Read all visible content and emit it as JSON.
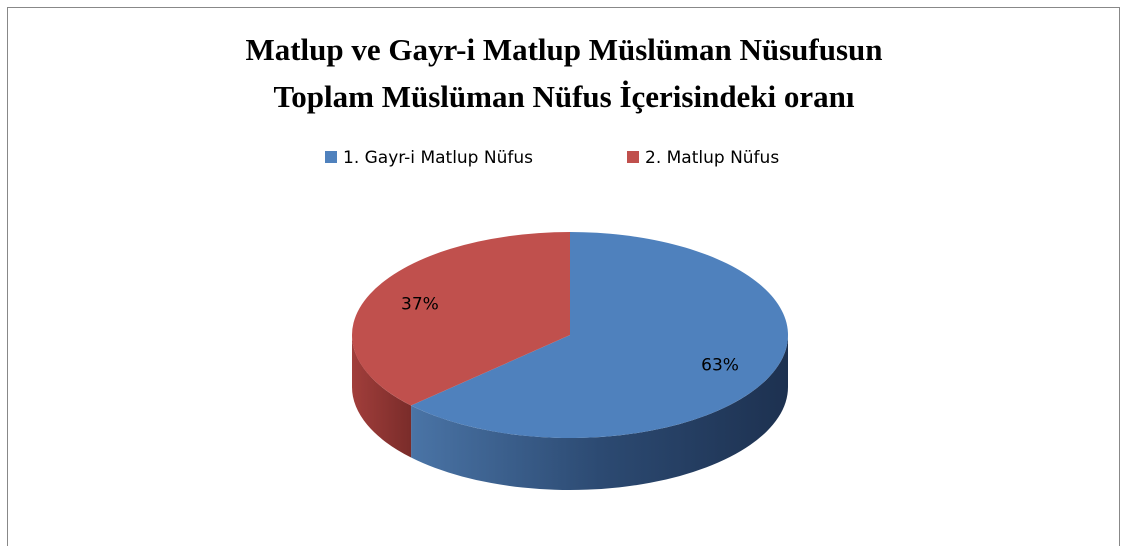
{
  "chart_data": {
    "type": "pie",
    "title": [
      "Matlup ve Gayr-i Matlup Müslüman Nüsufusun",
      "Toplam Müslüman Nüfus İçerisindeki oranı"
    ],
    "categories": [
      "1. Gayr-i Matlup Nüfus",
      "2. Matlup Nüfus"
    ],
    "values": [
      63,
      37
    ],
    "value_labels": [
      "63%",
      "37%"
    ],
    "colors": [
      "#4f81bd",
      "#c0504d"
    ],
    "legend": "top"
  }
}
